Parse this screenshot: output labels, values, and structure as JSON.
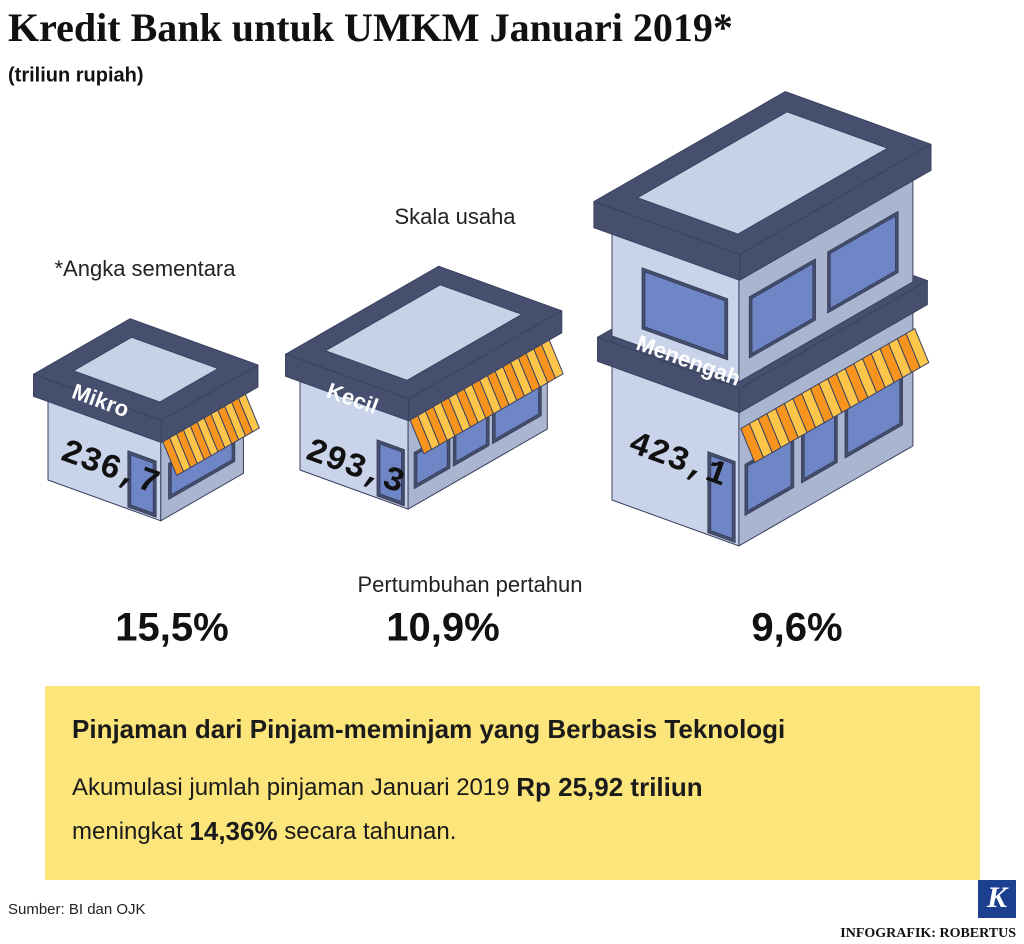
{
  "header": {
    "title": "Kredit Bank untuk UMKM Januari 2019*",
    "subtitle": "(triliun rupiah)"
  },
  "note": "*Angka sementara",
  "scale_label": "Skala usaha",
  "segments": [
    {
      "name": "Mikro",
      "value": "236,7",
      "growth": "15,5%"
    },
    {
      "name": "Kecil",
      "value": "293,3",
      "growth": "10,9%"
    },
    {
      "name": "Menengah",
      "value": "423,1",
      "growth": "9,6%"
    }
  ],
  "growth_label": "Pertumbuhan pertahun",
  "box": {
    "title": "Pinjaman dari Pinjam-meminjam yang Berbasis Teknologi",
    "line1": "Akumulasi jumlah pinjaman Januari 2019",
    "line1_bold": "Rp 25,92 triliun",
    "line2_pre": "meningkat",
    "line2_bold": "14,36%",
    "line2_post": "secara tahunan."
  },
  "footer": {
    "source": "Sumber: BI dan OJK",
    "logo": "K",
    "credit": "INFOGRAFIK: ROBERTUS"
  }
}
